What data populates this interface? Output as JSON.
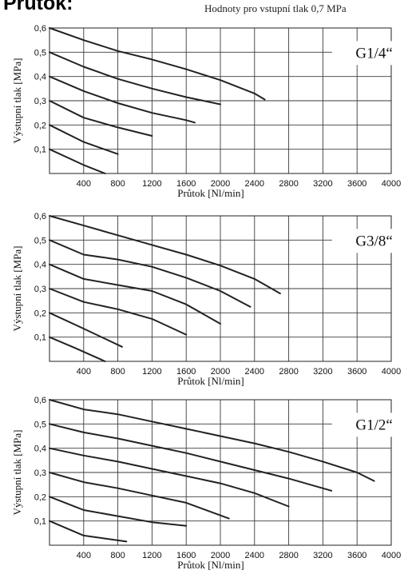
{
  "page": {
    "title": "Průtok:",
    "note": "Hodnoty pro vstupní tlak 0,7 MPa"
  },
  "chart_data": [
    {
      "type": "line",
      "title": "G1/4“",
      "xlabel": "Průtok [Nl/min]",
      "ylabel": "Výstupní tlak [MPa]",
      "xlim": [
        0,
        4000
      ],
      "ylim": [
        0,
        0.6
      ],
      "x_ticks": [
        "400",
        "800",
        "1200",
        "1600",
        "2000",
        "2400",
        "2800",
        "3200",
        "3600",
        "4000"
      ],
      "y_ticks": [
        "0,1",
        "0,2",
        "0,3",
        "0,4",
        "0,5",
        "0,6"
      ],
      "grid": true,
      "series": [
        {
          "x": [
            0,
            400,
            800,
            1200,
            1600,
            2000,
            2400,
            2520
          ],
          "y": [
            0.6,
            0.55,
            0.505,
            0.47,
            0.43,
            0.385,
            0.33,
            0.305
          ]
        },
        {
          "x": [
            0,
            400,
            800,
            1200,
            1600,
            2000
          ],
          "y": [
            0.5,
            0.44,
            0.39,
            0.35,
            0.315,
            0.285
          ]
        },
        {
          "x": [
            0,
            400,
            800,
            1200,
            1600,
            1700
          ],
          "y": [
            0.4,
            0.34,
            0.29,
            0.25,
            0.22,
            0.21
          ]
        },
        {
          "x": [
            0,
            400,
            800,
            1200
          ],
          "y": [
            0.3,
            0.23,
            0.19,
            0.155
          ]
        },
        {
          "x": [
            0,
            400,
            800
          ],
          "y": [
            0.2,
            0.13,
            0.08
          ]
        },
        {
          "x": [
            0,
            400,
            650
          ],
          "y": [
            0.1,
            0.035,
            0.0
          ]
        }
      ]
    },
    {
      "type": "line",
      "title": "G3/8“",
      "xlabel": "Průtok [Nl/min]",
      "ylabel": "Výstupní tlak [MPa]",
      "xlim": [
        0,
        4000
      ],
      "ylim": [
        0,
        0.6
      ],
      "x_ticks": [
        "400",
        "800",
        "1200",
        "1600",
        "2000",
        "2400",
        "2800",
        "3200",
        "3600",
        "4000"
      ],
      "y_ticks": [
        "0,1",
        "0,2",
        "0,3",
        "0,4",
        "0,5",
        "0,6"
      ],
      "grid": true,
      "series": [
        {
          "x": [
            0,
            400,
            800,
            1200,
            1600,
            2000,
            2400,
            2700
          ],
          "y": [
            0.6,
            0.56,
            0.52,
            0.48,
            0.44,
            0.395,
            0.34,
            0.28
          ]
        },
        {
          "x": [
            0,
            400,
            800,
            1200,
            1600,
            2000,
            2350
          ],
          "y": [
            0.5,
            0.44,
            0.42,
            0.39,
            0.345,
            0.29,
            0.225
          ]
        },
        {
          "x": [
            0,
            400,
            800,
            1200,
            1600,
            2000
          ],
          "y": [
            0.4,
            0.34,
            0.315,
            0.29,
            0.235,
            0.155
          ]
        },
        {
          "x": [
            0,
            400,
            800,
            1200,
            1600
          ],
          "y": [
            0.3,
            0.245,
            0.215,
            0.175,
            0.11
          ]
        },
        {
          "x": [
            0,
            400,
            850
          ],
          "y": [
            0.2,
            0.135,
            0.06
          ]
        },
        {
          "x": [
            0,
            300,
            650
          ],
          "y": [
            0.1,
            0.055,
            0.0
          ]
        }
      ]
    },
    {
      "type": "line",
      "title": "G1/2“",
      "xlabel": "Průtok [Nl/min]",
      "ylabel": "Výstupní tlak [MPa]",
      "xlim": [
        0,
        4000
      ],
      "ylim": [
        0,
        0.6
      ],
      "x_ticks": [
        "400",
        "800",
        "1200",
        "1600",
        "2000",
        "2400",
        "2800",
        "3200",
        "3600",
        "4000"
      ],
      "y_ticks": [
        "0,1",
        "0,2",
        "0,3",
        "0,4",
        "0,5",
        "0,6"
      ],
      "grid": true,
      "series": [
        {
          "x": [
            0,
            400,
            800,
            1200,
            1600,
            2000,
            2400,
            2800,
            3200,
            3600,
            3800
          ],
          "y": [
            0.6,
            0.56,
            0.54,
            0.51,
            0.48,
            0.45,
            0.42,
            0.385,
            0.345,
            0.3,
            0.265
          ]
        },
        {
          "x": [
            0,
            400,
            800,
            1200,
            1600,
            2000,
            2400,
            2800,
            3300
          ],
          "y": [
            0.5,
            0.465,
            0.44,
            0.41,
            0.38,
            0.345,
            0.31,
            0.275,
            0.225
          ]
        },
        {
          "x": [
            0,
            400,
            800,
            1200,
            1600,
            2000,
            2400,
            2800
          ],
          "y": [
            0.4,
            0.37,
            0.345,
            0.315,
            0.285,
            0.255,
            0.215,
            0.16
          ]
        },
        {
          "x": [
            0,
            400,
            800,
            1200,
            1600,
            2100
          ],
          "y": [
            0.3,
            0.26,
            0.235,
            0.205,
            0.175,
            0.11
          ]
        },
        {
          "x": [
            0,
            400,
            800,
            1200,
            1600
          ],
          "y": [
            0.2,
            0.145,
            0.12,
            0.095,
            0.08
          ]
        },
        {
          "x": [
            0,
            400,
            900
          ],
          "y": [
            0.1,
            0.04,
            0.015
          ]
        }
      ]
    }
  ]
}
